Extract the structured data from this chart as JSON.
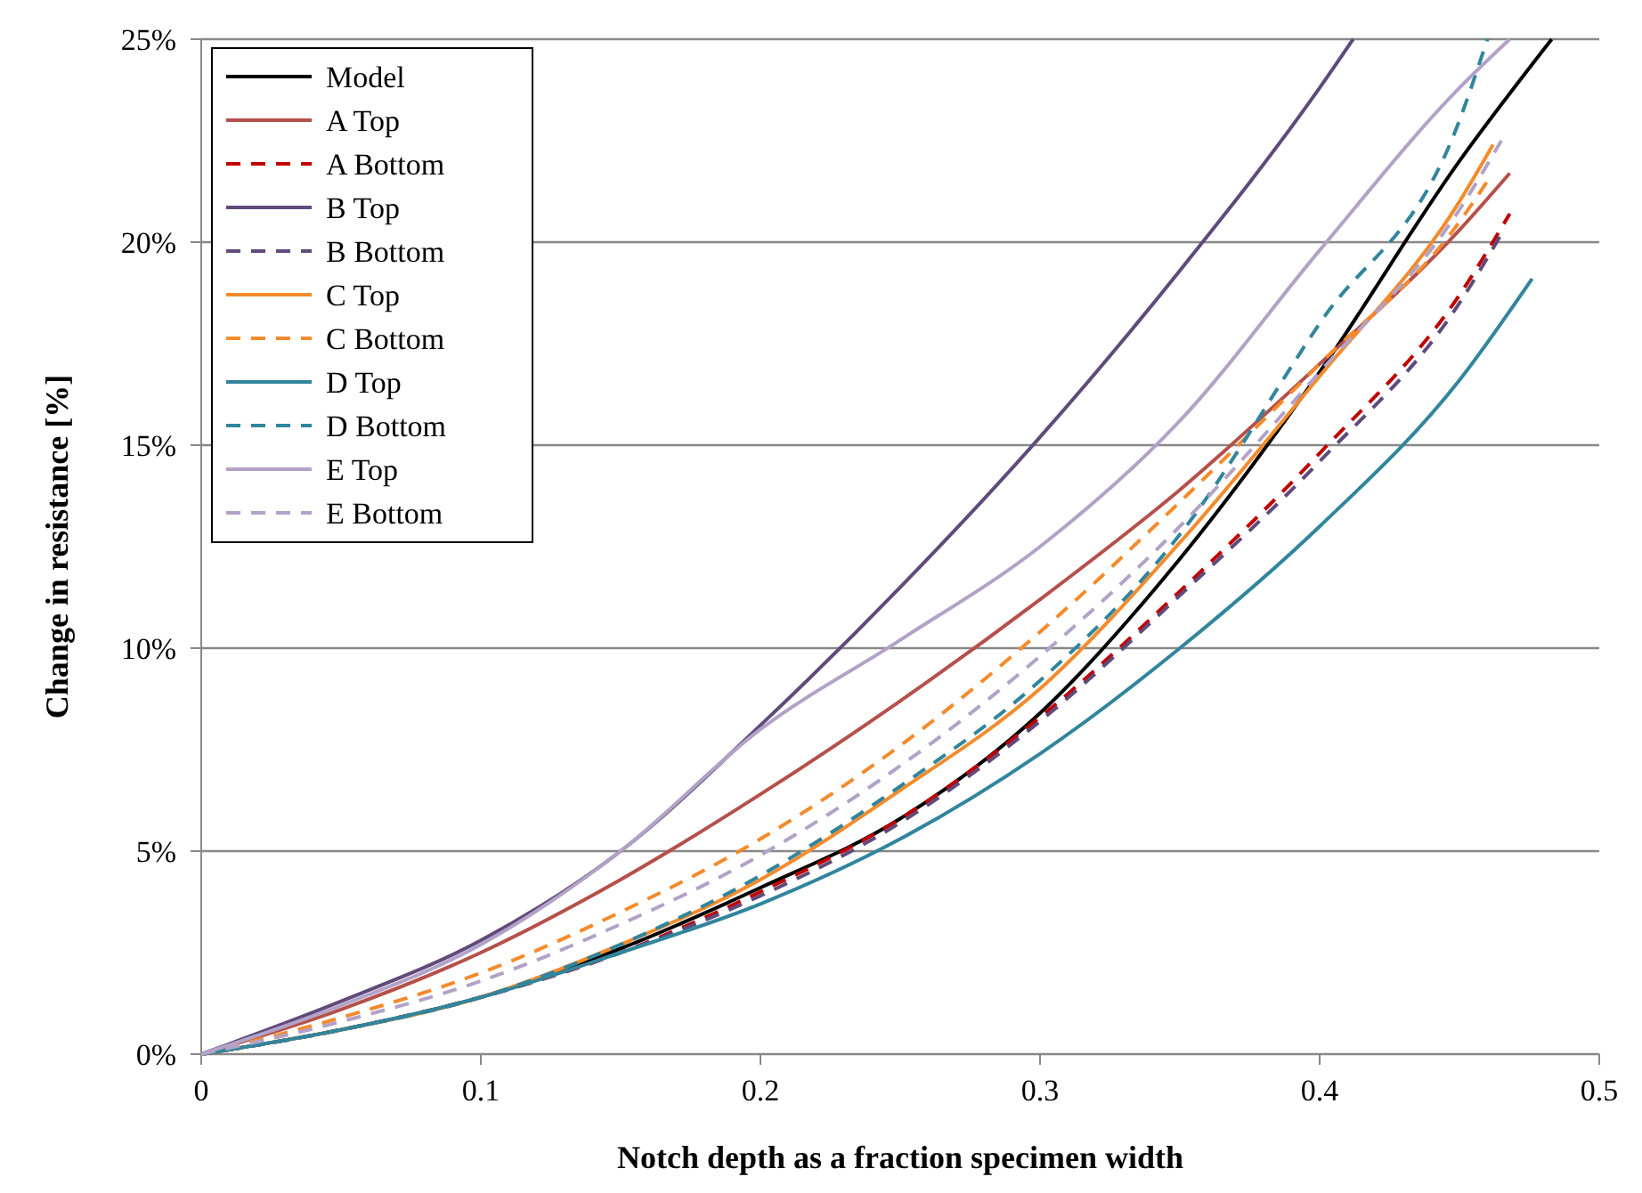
{
  "chart_data": {
    "type": "line",
    "xlabel": "Notch depth as a fraction specimen width",
    "ylabel": "Change in resistance [%]",
    "xlim": [
      0,
      0.5
    ],
    "xticks": [
      0,
      0.1,
      0.2,
      0.3,
      0.4,
      0.5
    ],
    "ylim": [
      0,
      25
    ],
    "yticks": [
      {
        "value": 0,
        "label": "0%"
      },
      {
        "value": 5,
        "label": "5%"
      },
      {
        "value": 10,
        "label": "10%"
      },
      {
        "value": 15,
        "label": "15%"
      },
      {
        "value": 20,
        "label": "20%"
      },
      {
        "value": 25,
        "label": "25%"
      }
    ],
    "grid": "y",
    "legend": "top left",
    "series": [
      {
        "name": "Model",
        "color": "#000000",
        "line_style": "solid",
        "x": [
          0,
          0.05,
          0.1,
          0.15,
          0.2,
          0.25,
          0.3,
          0.35,
          0.4,
          0.45,
          0.483
        ],
        "values": [
          0,
          0.6,
          1.4,
          2.6,
          4.1,
          5.8,
          8.4,
          12.2,
          16.8,
          22,
          25
        ]
      },
      {
        "name": "A Top",
        "color": "#b5504a",
        "line_style": "solid",
        "x": [
          0,
          0.05,
          0.1,
          0.15,
          0.2,
          0.25,
          0.3,
          0.35,
          0.4,
          0.45,
          0.468
        ],
        "values": [
          0,
          1.1,
          2.5,
          4.3,
          6.4,
          8.7,
          11.2,
          13.9,
          17,
          20.3,
          21.7
        ]
      },
      {
        "name": "A Bottom",
        "color": "#c00000",
        "line_style": "dashed",
        "x": [
          0,
          0.05,
          0.1,
          0.15,
          0.2,
          0.25,
          0.3,
          0.35,
          0.4,
          0.45,
          0.468
        ],
        "values": [
          0,
          0.6,
          1.4,
          2.5,
          4,
          5.8,
          8.3,
          11.4,
          14.8,
          18.7,
          20.7
        ]
      },
      {
        "name": "B Top",
        "color": "#604a7b",
        "line_style": "solid",
        "x": [
          0,
          0.05,
          0.1,
          0.15,
          0.2,
          0.25,
          0.3,
          0.35,
          0.4,
          0.412
        ],
        "values": [
          0,
          1.3,
          2.8,
          5,
          8.1,
          11.5,
          15.2,
          19.3,
          23.8,
          25
        ]
      },
      {
        "name": "B Bottom",
        "color": "#604a7b",
        "line_style": "dashed",
        "x": [
          0,
          0.05,
          0.1,
          0.15,
          0.2,
          0.25,
          0.3,
          0.35,
          0.4,
          0.45,
          0.465
        ],
        "values": [
          0,
          0.6,
          1.4,
          2.5,
          3.9,
          5.7,
          8.2,
          11.3,
          14.6,
          18.5,
          20.2
        ]
      },
      {
        "name": "C Top",
        "color": "#f38b2c",
        "line_style": "solid",
        "x": [
          0,
          0.05,
          0.1,
          0.15,
          0.2,
          0.25,
          0.3,
          0.35,
          0.4,
          0.45,
          0.462
        ],
        "values": [
          0,
          0.6,
          1.4,
          2.7,
          4.3,
          6.5,
          9,
          12.6,
          16.7,
          21,
          22.4
        ]
      },
      {
        "name": "C Bottom",
        "color": "#f38b2c",
        "line_style": "dashed",
        "x": [
          0,
          0.05,
          0.1,
          0.15,
          0.2,
          0.25,
          0.3,
          0.35,
          0.4,
          0.45,
          0.46
        ],
        "values": [
          0,
          0.9,
          2,
          3.5,
          5.3,
          7.6,
          10.4,
          13.6,
          17,
          20.5,
          21.5
        ]
      },
      {
        "name": "D Top",
        "color": "#31859c",
        "line_style": "solid",
        "x": [
          0,
          0.05,
          0.1,
          0.15,
          0.2,
          0.25,
          0.3,
          0.35,
          0.4,
          0.45,
          0.476
        ],
        "values": [
          0,
          0.6,
          1.4,
          2.5,
          3.7,
          5.3,
          7.4,
          10,
          13,
          16.6,
          19.1
        ]
      },
      {
        "name": "D Bottom",
        "color": "#31859c",
        "line_style": "dashed",
        "x": [
          0,
          0.05,
          0.1,
          0.15,
          0.2,
          0.25,
          0.3,
          0.35,
          0.4,
          0.45,
          0.46
        ],
        "values": [
          0,
          0.6,
          1.4,
          2.7,
          4.4,
          6.6,
          9.2,
          12.8,
          18,
          23,
          25
        ]
      },
      {
        "name": "E Top",
        "color": "#b3a2c7",
        "line_style": "solid",
        "x": [
          0,
          0.05,
          0.1,
          0.15,
          0.2,
          0.25,
          0.3,
          0.35,
          0.4,
          0.45,
          0.468
        ],
        "values": [
          0,
          1.2,
          2.7,
          5,
          8,
          10.2,
          12.5,
          15.6,
          19.8,
          23.8,
          25
        ]
      },
      {
        "name": "E Bottom",
        "color": "#b3a2c7",
        "line_style": "dashed",
        "x": [
          0,
          0.05,
          0.1,
          0.15,
          0.2,
          0.25,
          0.3,
          0.35,
          0.4,
          0.45,
          0.465
        ],
        "values": [
          0,
          0.8,
          1.8,
          3.2,
          4.9,
          7.1,
          9.8,
          13,
          16.8,
          20.8,
          22.5
        ]
      }
    ]
  }
}
